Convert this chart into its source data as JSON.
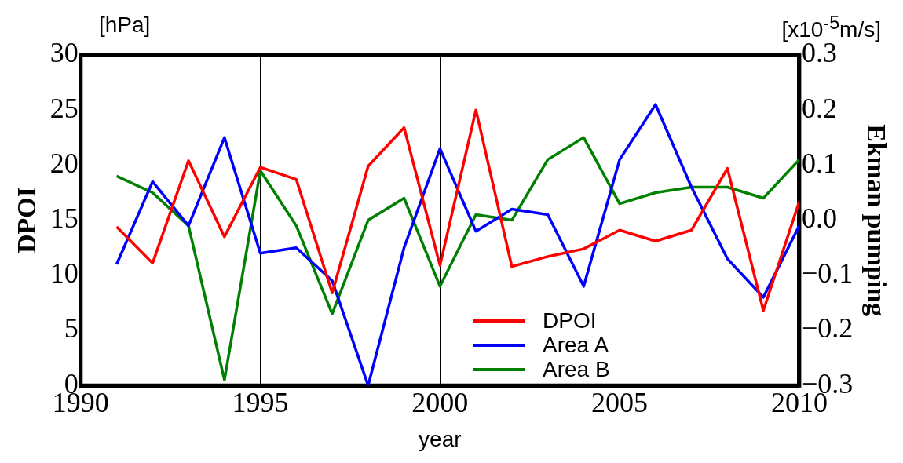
{
  "chart_data": {
    "type": "line",
    "xlabel": "year",
    "ylabel": "DPOI",
    "y2label": "Ekman pumping",
    "annotations": [
      "[hPa]",
      "[x10$^{-5}$m/s]"
    ],
    "x": [
      1991,
      1992,
      1993,
      1994,
      1995,
      1996,
      1997,
      1998,
      1999,
      2000,
      2001,
      2002,
      2003,
      2004,
      2005,
      2006,
      2007,
      2008,
      2009,
      2010
    ],
    "series": [
      {
        "name": "DPOI",
        "color": "#ff0000",
        "values": [
          14.4,
          11.1,
          20.4,
          13.5,
          19.8,
          18.7,
          8.4,
          19.9,
          23.4,
          10.9,
          25.0,
          10.8,
          11.7,
          12.4,
          14.1,
          13.1,
          14.1,
          19.7,
          6.8,
          16.7
        ]
      },
      {
        "name": "Area A",
        "color": "#0000ff",
        "axis": "y2",
        "values": [
          -0.08,
          0.07,
          -0.01,
          0.15,
          -0.06,
          -0.05,
          -0.11,
          -0.3,
          -0.05,
          0.13,
          -0.02,
          0.02,
          0.01,
          -0.12,
          0.11,
          0.21,
          0.06,
          -0.07,
          -0.14,
          -0.01
        ]
      },
      {
        "name": "Area B",
        "color": "#008000",
        "axis": "y2",
        "values": [
          0.08,
          0.05,
          -0.01,
          -0.29,
          0.09,
          -0.01,
          -0.17,
          0.0,
          0.04,
          -0.12,
          0.01,
          0.0,
          0.11,
          0.15,
          0.03,
          0.05,
          0.06,
          0.06,
          0.04,
          0.11
        ]
      }
    ],
    "xlim": [
      1990,
      2010
    ],
    "xticks": [
      1990,
      1995,
      2000,
      2005,
      2010
    ],
    "ylim": [
      0,
      30
    ],
    "yticks": [
      0,
      5,
      10,
      15,
      20,
      25,
      30
    ],
    "y2lim": [
      -0.3,
      0.3
    ],
    "y2ticks": [
      {
        "value": -0.3,
        "label": "−0.3"
      },
      {
        "value": -0.2,
        "label": "−0.2"
      },
      {
        "value": -0.1,
        "label": "−0.1"
      },
      {
        "value": 0,
        "label": "0.0"
      },
      0.1,
      0.2,
      0.3
    ],
    "grid": "x",
    "legend": "bottom"
  }
}
